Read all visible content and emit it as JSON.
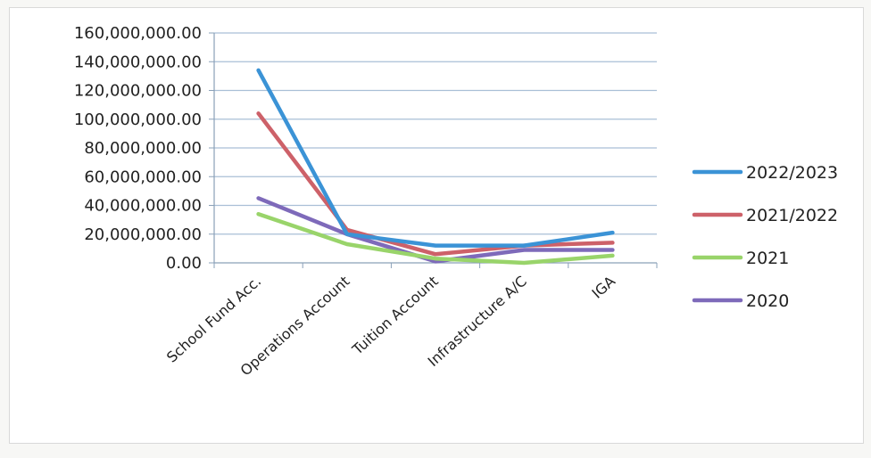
{
  "chart_data": {
    "type": "line",
    "title": "",
    "xlabel": "",
    "ylabel": "",
    "categories": [
      "School Fund Acc.",
      "Operations Account",
      "Tuition Account",
      "Infrastructure A/C",
      "IGA"
    ],
    "y_ticks": [
      "0.00",
      "20,000,000.00",
      "40,000,000.00",
      "60,000,000.00",
      "80,000,000.00",
      "100,000,000.00",
      "120,000,000.00",
      "140,000,000.00",
      "160,000,000.00"
    ],
    "ylim": [
      0,
      160000000
    ],
    "grid": true,
    "legend_position": "right",
    "series": [
      {
        "name": "2022/2023",
        "color": "#3b93d6",
        "values": [
          134000000,
          20000000,
          12000000,
          12000000,
          21000000
        ]
      },
      {
        "name": "2021/2022",
        "color": "#cd6169",
        "values": [
          104000000,
          23000000,
          6000000,
          12000000,
          14000000
        ]
      },
      {
        "name": "2021",
        "color": "#99d46a",
        "values": [
          34000000,
          13000000,
          3000000,
          0,
          5000000
        ]
      },
      {
        "name": "2020",
        "color": "#7e6aba",
        "values": [
          45000000,
          20000000,
          1000000,
          9000000,
          9000000
        ]
      }
    ]
  }
}
